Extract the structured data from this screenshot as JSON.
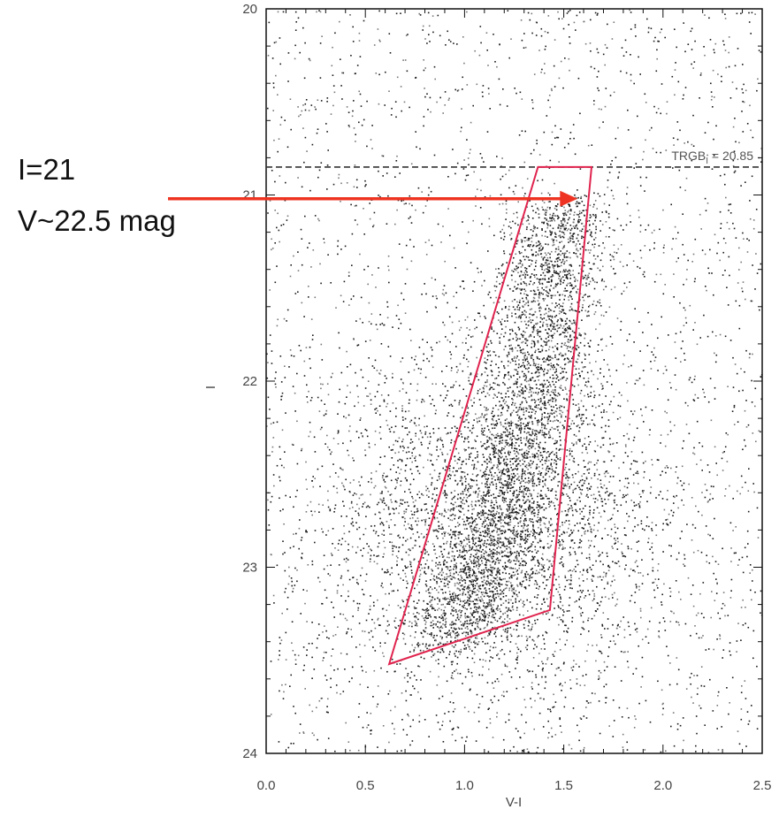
{
  "chart_data": {
    "type": "scatter",
    "title": "",
    "xlabel": "V-I",
    "ylabel": "I",
    "xlim": [
      0.0,
      2.5
    ],
    "ylim": [
      24,
      20
    ],
    "y_inverted": true,
    "xticks": [
      "0.0",
      "0.5",
      "1.0",
      "1.5",
      "2.0",
      "2.5"
    ],
    "yticks": [
      "20",
      "21",
      "22",
      "23",
      "24"
    ],
    "grid": false,
    "point_color": "#1a1a1a",
    "trgb": {
      "value": 20.85,
      "label": "TRGB",
      "subscript": "I",
      "text": " = 20.85",
      "line_style": "dashed",
      "color": "#333333"
    },
    "selection_box": {
      "color": "#e0234e",
      "vertices": [
        [
          1.37,
          20.85
        ],
        [
          1.64,
          20.85
        ],
        [
          1.43,
          23.23
        ],
        [
          0.62,
          23.52
        ]
      ]
    },
    "distribution": {
      "description_points": "clump centred near (1.15, 22.7)",
      "rgb_branch": [
        [
          1.5,
          21.05
        ],
        [
          1.42,
          21.5
        ],
        [
          1.35,
          22.0
        ],
        [
          1.25,
          22.5
        ],
        [
          1.1,
          23.0
        ],
        [
          0.95,
          23.4
        ]
      ]
    }
  },
  "annotation": {
    "line1": "I=21",
    "line2": "V~22.5 mag",
    "arrow_color": "#ee3322",
    "arrow_target": [
      1.57,
      21.02
    ]
  }
}
